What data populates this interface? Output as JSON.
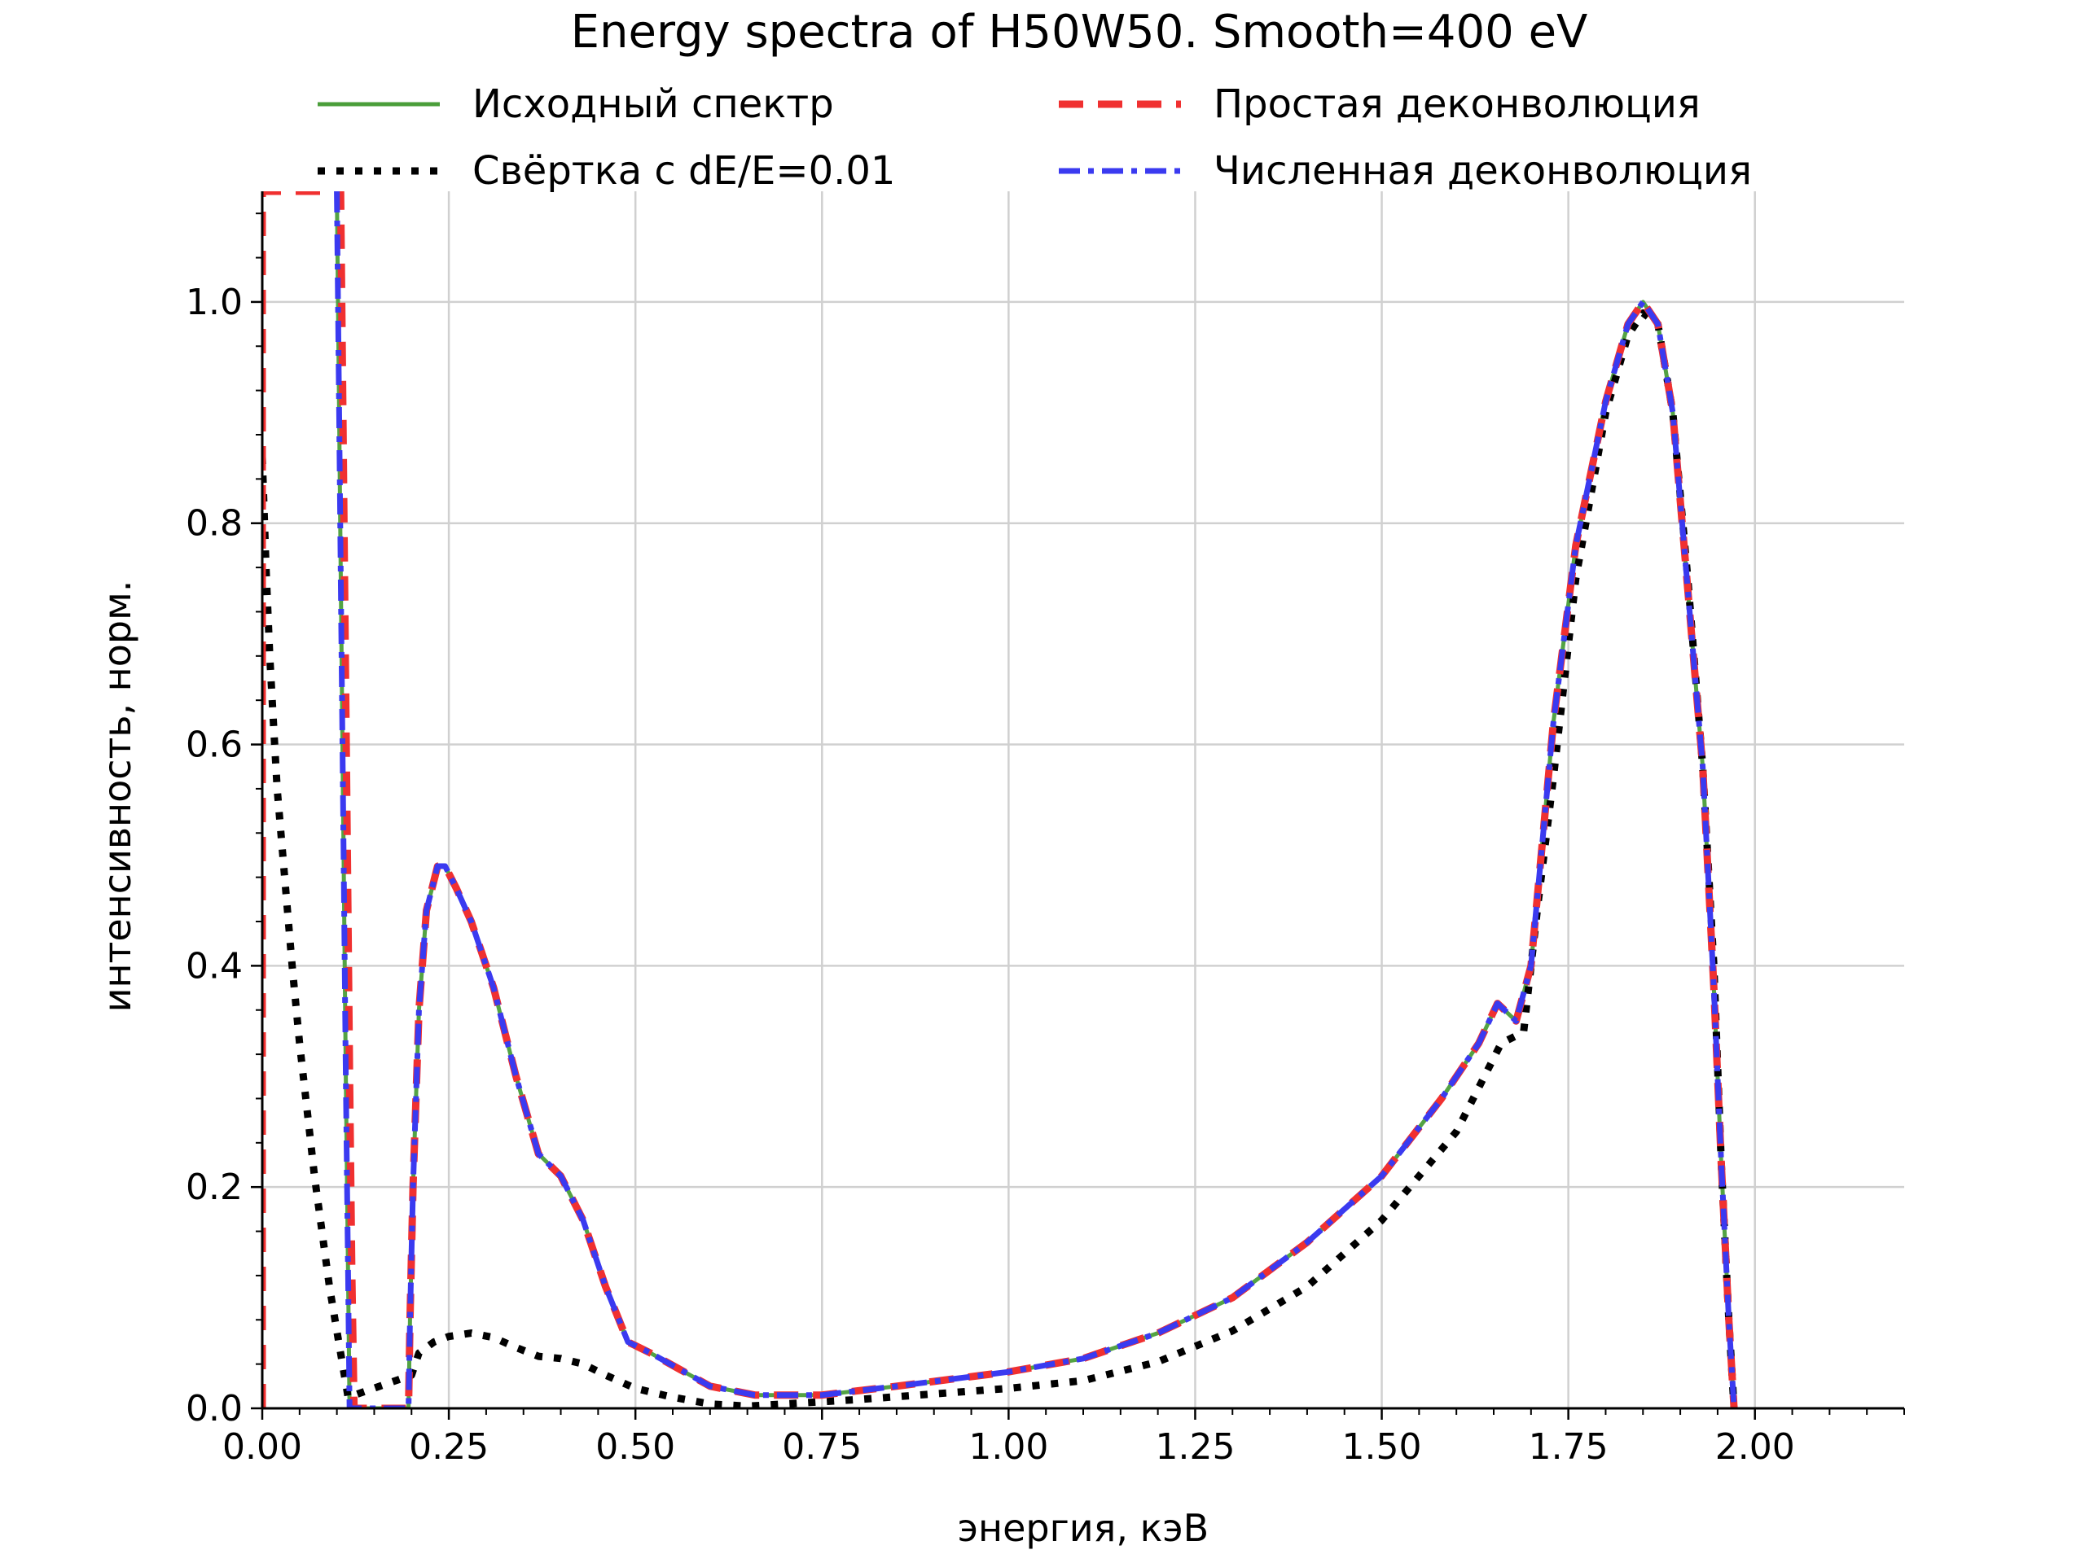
{
  "chart_data": {
    "type": "line",
    "title": "Energy spectra of H50W50. Smooth=400 eV",
    "xlabel": "энергия, кэВ",
    "ylabel": "интенсивность, норм.",
    "xlim": [
      0,
      2.2
    ],
    "ylim": [
      0,
      1.1
    ],
    "grid": true,
    "legend_position": "top",
    "x_ticks": [
      "0.00",
      "0.25",
      "0.50",
      "0.75",
      "1.00",
      "1.25",
      "1.50",
      "1.75",
      "2.00"
    ],
    "y_ticks": [
      "0.0",
      "0.2",
      "0.4",
      "0.6",
      "0.8",
      "1.0"
    ],
    "series": [
      {
        "name": "Исходный спектр",
        "color": "#4a9e3a",
        "style": "solid",
        "points": [
          [
            0.1,
            1.1
          ],
          [
            0.103,
            0.9
          ],
          [
            0.106,
            0.7
          ],
          [
            0.109,
            0.5
          ],
          [
            0.112,
            0.3
          ],
          [
            0.115,
            0.12
          ],
          [
            0.117,
            0.0
          ],
          [
            0.196,
            0.0
          ],
          [
            0.198,
            0.08
          ],
          [
            0.202,
            0.2
          ],
          [
            0.21,
            0.36
          ],
          [
            0.22,
            0.45
          ],
          [
            0.235,
            0.49
          ],
          [
            0.245,
            0.49
          ],
          [
            0.26,
            0.47
          ],
          [
            0.28,
            0.44
          ],
          [
            0.31,
            0.38
          ],
          [
            0.34,
            0.3
          ],
          [
            0.37,
            0.23
          ],
          [
            0.4,
            0.21
          ],
          [
            0.43,
            0.17
          ],
          [
            0.46,
            0.11
          ],
          [
            0.49,
            0.06
          ],
          [
            0.52,
            0.05
          ],
          [
            0.56,
            0.035
          ],
          [
            0.6,
            0.02
          ],
          [
            0.66,
            0.012
          ],
          [
            0.7,
            0.012
          ],
          [
            0.75,
            0.012
          ],
          [
            0.85,
            0.02
          ],
          [
            1.0,
            0.033
          ],
          [
            1.1,
            0.045
          ],
          [
            1.2,
            0.068
          ],
          [
            1.3,
            0.1
          ],
          [
            1.4,
            0.15
          ],
          [
            1.5,
            0.21
          ],
          [
            1.58,
            0.28
          ],
          [
            1.63,
            0.33
          ],
          [
            1.655,
            0.366
          ],
          [
            1.68,
            0.35
          ],
          [
            1.7,
            0.4
          ],
          [
            1.73,
            0.62
          ],
          [
            1.76,
            0.78
          ],
          [
            1.8,
            0.91
          ],
          [
            1.83,
            0.98
          ],
          [
            1.85,
            1.0
          ],
          [
            1.87,
            0.98
          ],
          [
            1.89,
            0.9
          ],
          [
            1.91,
            0.74
          ],
          [
            1.93,
            0.58
          ],
          [
            1.945,
            0.38
          ],
          [
            1.955,
            0.22
          ],
          [
            1.965,
            0.08
          ],
          [
            1.972,
            0.0
          ]
        ]
      },
      {
        "name": "Простая деконволюция",
        "color": "#f03030",
        "style": "dashed",
        "points": [
          [
            0.0,
            0.0
          ],
          [
            0.0,
            1.1
          ],
          [
            0.105,
            1.1
          ],
          [
            0.108,
            0.9
          ],
          [
            0.111,
            0.7
          ],
          [
            0.114,
            0.5
          ],
          [
            0.117,
            0.3
          ],
          [
            0.12,
            0.12
          ],
          [
            0.123,
            0.0
          ],
          [
            0.196,
            0.0
          ],
          [
            0.198,
            0.08
          ],
          [
            0.202,
            0.2
          ],
          [
            0.21,
            0.36
          ],
          [
            0.22,
            0.45
          ],
          [
            0.235,
            0.49
          ],
          [
            0.245,
            0.49
          ],
          [
            0.26,
            0.47
          ],
          [
            0.28,
            0.44
          ],
          [
            0.31,
            0.38
          ],
          [
            0.34,
            0.3
          ],
          [
            0.37,
            0.23
          ],
          [
            0.4,
            0.21
          ],
          [
            0.43,
            0.17
          ],
          [
            0.46,
            0.11
          ],
          [
            0.49,
            0.06
          ],
          [
            0.52,
            0.05
          ],
          [
            0.56,
            0.035
          ],
          [
            0.6,
            0.02
          ],
          [
            0.66,
            0.012
          ],
          [
            0.7,
            0.012
          ],
          [
            0.75,
            0.012
          ],
          [
            0.85,
            0.02
          ],
          [
            1.0,
            0.033
          ],
          [
            1.1,
            0.045
          ],
          [
            1.2,
            0.068
          ],
          [
            1.3,
            0.1
          ],
          [
            1.4,
            0.15
          ],
          [
            1.5,
            0.21
          ],
          [
            1.58,
            0.28
          ],
          [
            1.63,
            0.33
          ],
          [
            1.655,
            0.366
          ],
          [
            1.68,
            0.35
          ],
          [
            1.7,
            0.4
          ],
          [
            1.73,
            0.62
          ],
          [
            1.76,
            0.78
          ],
          [
            1.8,
            0.91
          ],
          [
            1.83,
            0.98
          ],
          [
            1.85,
            1.0
          ],
          [
            1.87,
            0.98
          ],
          [
            1.89,
            0.9
          ],
          [
            1.91,
            0.74
          ],
          [
            1.93,
            0.58
          ],
          [
            1.945,
            0.38
          ],
          [
            1.955,
            0.22
          ],
          [
            1.965,
            0.08
          ],
          [
            1.972,
            0.0
          ]
        ]
      },
      {
        "name": "Свёртка с dE/E=0.01",
        "color": "#000000",
        "style": "dotted",
        "points": [
          [
            0.0,
            0.86
          ],
          [
            0.005,
            0.76
          ],
          [
            0.01,
            0.68
          ],
          [
            0.015,
            0.62
          ],
          [
            0.02,
            0.56
          ],
          [
            0.03,
            0.48
          ],
          [
            0.04,
            0.4
          ],
          [
            0.05,
            0.33
          ],
          [
            0.06,
            0.27
          ],
          [
            0.07,
            0.21
          ],
          [
            0.08,
            0.16
          ],
          [
            0.09,
            0.11
          ],
          [
            0.1,
            0.07
          ],
          [
            0.11,
            0.03
          ],
          [
            0.115,
            0.01
          ],
          [
            0.2,
            0.03
          ],
          [
            0.21,
            0.05
          ],
          [
            0.23,
            0.06
          ],
          [
            0.25,
            0.065
          ],
          [
            0.28,
            0.068
          ],
          [
            0.31,
            0.064
          ],
          [
            0.34,
            0.055
          ],
          [
            0.37,
            0.047
          ],
          [
            0.4,
            0.045
          ],
          [
            0.43,
            0.04
          ],
          [
            0.46,
            0.03
          ],
          [
            0.5,
            0.018
          ],
          [
            0.55,
            0.01
          ],
          [
            0.6,
            0.004
          ],
          [
            0.65,
            0.002
          ],
          [
            0.7,
            0.004
          ],
          [
            0.8,
            0.008
          ],
          [
            0.9,
            0.013
          ],
          [
            1.0,
            0.018
          ],
          [
            1.1,
            0.025
          ],
          [
            1.2,
            0.042
          ],
          [
            1.3,
            0.07
          ],
          [
            1.4,
            0.11
          ],
          [
            1.5,
            0.17
          ],
          [
            1.6,
            0.25
          ],
          [
            1.66,
            0.33
          ],
          [
            1.69,
            0.34
          ],
          [
            1.71,
            0.46
          ],
          [
            1.73,
            0.57
          ],
          [
            1.76,
            0.75
          ],
          [
            1.8,
            0.9
          ],
          [
            1.83,
            0.97
          ],
          [
            1.85,
            0.99
          ],
          [
            1.87,
            0.98
          ],
          [
            1.89,
            0.9
          ],
          [
            1.91,
            0.75
          ],
          [
            1.93,
            0.58
          ],
          [
            1.945,
            0.4
          ],
          [
            1.955,
            0.22
          ],
          [
            1.965,
            0.08
          ],
          [
            1.972,
            0.0
          ]
        ]
      },
      {
        "name": "Численная деконволюция",
        "color": "#3a3af0",
        "style": "dashdot",
        "points": [
          [
            0.1,
            1.1
          ],
          [
            0.103,
            0.9
          ],
          [
            0.106,
            0.7
          ],
          [
            0.109,
            0.5
          ],
          [
            0.112,
            0.3
          ],
          [
            0.115,
            0.12
          ],
          [
            0.117,
            0.0
          ],
          [
            0.196,
            0.0
          ],
          [
            0.198,
            0.08
          ],
          [
            0.202,
            0.2
          ],
          [
            0.21,
            0.36
          ],
          [
            0.22,
            0.45
          ],
          [
            0.235,
            0.49
          ],
          [
            0.245,
            0.49
          ],
          [
            0.26,
            0.47
          ],
          [
            0.28,
            0.44
          ],
          [
            0.31,
            0.38
          ],
          [
            0.34,
            0.3
          ],
          [
            0.37,
            0.23
          ],
          [
            0.4,
            0.21
          ],
          [
            0.43,
            0.17
          ],
          [
            0.46,
            0.11
          ],
          [
            0.49,
            0.06
          ],
          [
            0.52,
            0.05
          ],
          [
            0.56,
            0.035
          ],
          [
            0.6,
            0.02
          ],
          [
            0.66,
            0.012
          ],
          [
            0.7,
            0.012
          ],
          [
            0.75,
            0.012
          ],
          [
            0.85,
            0.02
          ],
          [
            1.0,
            0.033
          ],
          [
            1.1,
            0.045
          ],
          [
            1.2,
            0.068
          ],
          [
            1.3,
            0.1
          ],
          [
            1.4,
            0.15
          ],
          [
            1.5,
            0.21
          ],
          [
            1.58,
            0.28
          ],
          [
            1.63,
            0.33
          ],
          [
            1.655,
            0.366
          ],
          [
            1.68,
            0.35
          ],
          [
            1.7,
            0.4
          ],
          [
            1.73,
            0.62
          ],
          [
            1.76,
            0.78
          ],
          [
            1.8,
            0.91
          ],
          [
            1.83,
            0.98
          ],
          [
            1.85,
            1.0
          ],
          [
            1.87,
            0.98
          ],
          [
            1.89,
            0.9
          ],
          [
            1.91,
            0.74
          ],
          [
            1.93,
            0.58
          ],
          [
            1.945,
            0.38
          ],
          [
            1.955,
            0.22
          ],
          [
            1.965,
            0.08
          ],
          [
            1.972,
            0.0
          ]
        ]
      }
    ]
  }
}
